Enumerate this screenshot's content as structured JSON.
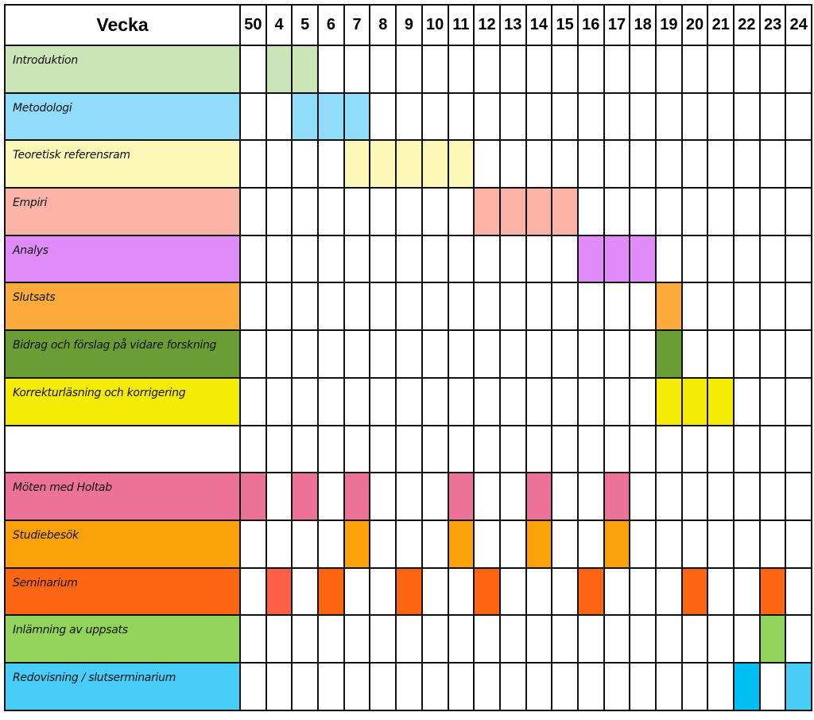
{
  "chart_data": {
    "type": "table",
    "header_label": "Vecka",
    "weeks": [
      "50",
      "4",
      "5",
      "6",
      "7",
      "8",
      "9",
      "10",
      "11",
      "12",
      "13",
      "14",
      "15",
      "16",
      "17",
      "18",
      "19",
      "20",
      "21",
      "22",
      "23",
      "24"
    ],
    "tasks": [
      {
        "name": "Introduktion",
        "color": "#cbe5b8",
        "weeks": [
          "4",
          "5"
        ]
      },
      {
        "name": "Metodologi",
        "color": "#8fddfb",
        "weeks": [
          "5",
          "6",
          "7"
        ]
      },
      {
        "name": "Teoretisk referensram",
        "color": "#fdf8b8",
        "weeks": [
          "7",
          "8",
          "9",
          "10",
          "11"
        ]
      },
      {
        "name": "Empiri",
        "color": "#fbb3a8",
        "weeks": [
          "12",
          "13",
          "14",
          "15"
        ]
      },
      {
        "name": "Analys",
        "color": "#df8cf9",
        "weeks": [
          "16",
          "17",
          "18"
        ]
      },
      {
        "name": "Slutsats",
        "color": "#fbab3c",
        "weeks": [
          "19"
        ]
      },
      {
        "name": "Bidrag och förslag på vidare forskning",
        "color": "#6a9d36",
        "weeks": [
          "19"
        ]
      },
      {
        "name": "Korrekturläsning och korrigering",
        "color": "#f4ec05",
        "weeks": [
          "19",
          "20",
          "21"
        ]
      },
      {
        "name": "",
        "color": "#ffffff",
        "weeks": []
      },
      {
        "name": "Möten med Holtab",
        "color": "#ed7299",
        "weeks": [
          "50",
          "5",
          "7",
          "11",
          "14",
          "17"
        ]
      },
      {
        "name": "Studiebesök",
        "color": "#fba20a",
        "weeks": [
          "7",
          "11",
          "14",
          "17"
        ]
      },
      {
        "name": "Seminarium",
        "color": "#fc6512",
        "weeks": [
          "4",
          "6",
          "9",
          "12",
          "16",
          "20",
          "23"
        ],
        "week_colors": {
          "4": "#fd5f47"
        }
      },
      {
        "name": "Inlämning av uppsats",
        "color": "#91d35b",
        "weeks": [
          "23"
        ]
      },
      {
        "name": "Redovisning / slutserminarium",
        "color": "#47cdf7",
        "weeks": [
          "22",
          "24"
        ],
        "week_colors": {
          "22": "#00bff2"
        }
      }
    ]
  }
}
